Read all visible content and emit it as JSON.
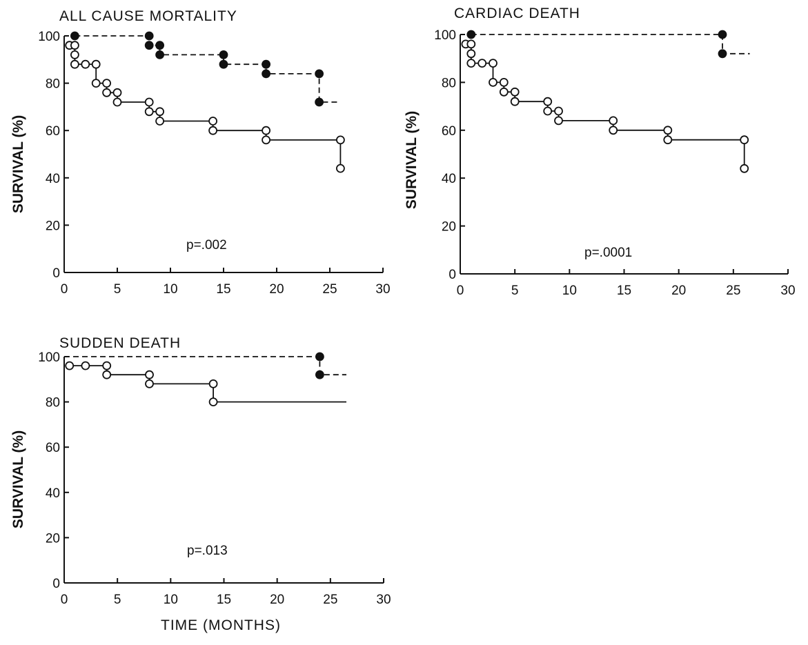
{
  "figure": {
    "xlabel": "TIME (MONTHS)"
  },
  "chart_data": [
    {
      "type": "line",
      "title": "ALL CAUSE MORTALITY",
      "ylabel": "SURVIVAL (%)",
      "xlabel": "",
      "annotation": "p=.002",
      "xlim": [
        0,
        30
      ],
      "ylim": [
        0,
        100
      ],
      "xticks": [
        0,
        5,
        10,
        15,
        20,
        25,
        30
      ],
      "yticks": [
        0,
        20,
        40,
        60,
        80,
        100
      ],
      "series": [
        {
          "style": "filled-dashed",
          "color": "#111111",
          "x": [
            1,
            8,
            8,
            9,
            9,
            15,
            15,
            19,
            19,
            24,
            24,
            26
          ],
          "y": [
            100,
            100,
            96,
            96,
            92,
            92,
            88,
            88,
            84,
            84,
            72,
            72
          ],
          "markers": [
            [
              1,
              100
            ],
            [
              8,
              100
            ],
            [
              8,
              96
            ],
            [
              9,
              96
            ],
            [
              9,
              92
            ],
            [
              15,
              92
            ],
            [
              15,
              88
            ],
            [
              19,
              88
            ],
            [
              19,
              84
            ],
            [
              24,
              84
            ],
            [
              24,
              72
            ]
          ]
        },
        {
          "style": "open-solid",
          "color": "#111111",
          "x": [
            0.5,
            1,
            1,
            2,
            3,
            3,
            4,
            4,
            5,
            5,
            8,
            8,
            9,
            9,
            14,
            14,
            19,
            19,
            26,
            26
          ],
          "y": [
            96,
            96,
            88,
            88,
            88,
            80,
            80,
            76,
            76,
            72,
            72,
            68,
            68,
            64,
            64,
            60,
            60,
            56,
            56,
            44
          ],
          "markers": [
            [
              0.5,
              96
            ],
            [
              1,
              96
            ],
            [
              1,
              92
            ],
            [
              1,
              88
            ],
            [
              2,
              88
            ],
            [
              3,
              88
            ],
            [
              3,
              80
            ],
            [
              4,
              80
            ],
            [
              4,
              76
            ],
            [
              5,
              76
            ],
            [
              5,
              72
            ],
            [
              8,
              72
            ],
            [
              8,
              68
            ],
            [
              9,
              68
            ],
            [
              9,
              64
            ],
            [
              14,
              64
            ],
            [
              14,
              60
            ],
            [
              19,
              60
            ],
            [
              19,
              56
            ],
            [
              26,
              56
            ],
            [
              26,
              44
            ]
          ]
        }
      ]
    },
    {
      "type": "line",
      "title": "CARDIAC DEATH",
      "ylabel": "SURVIVAL (%)",
      "xlabel": "",
      "annotation": "p=.0001",
      "xlim": [
        0,
        30
      ],
      "ylim": [
        0,
        100
      ],
      "xticks": [
        0,
        5,
        10,
        15,
        20,
        25,
        30
      ],
      "yticks": [
        0,
        20,
        40,
        60,
        80,
        100
      ],
      "series": [
        {
          "style": "filled-dashed",
          "color": "#111111",
          "x": [
            1,
            24,
            24,
            26.5
          ],
          "y": [
            100,
            100,
            92,
            92
          ],
          "markers": [
            [
              1,
              100
            ],
            [
              24,
              100
            ],
            [
              24,
              92
            ]
          ]
        },
        {
          "style": "open-solid",
          "color": "#111111",
          "x": [
            0.5,
            1,
            1,
            2,
            3,
            3,
            4,
            4,
            5,
            5,
            8,
            8,
            9,
            9,
            14,
            14,
            19,
            19,
            26,
            26
          ],
          "y": [
            96,
            96,
            88,
            88,
            88,
            80,
            80,
            76,
            76,
            72,
            72,
            68,
            68,
            64,
            64,
            60,
            60,
            56,
            56,
            44
          ],
          "markers": [
            [
              0.5,
              96
            ],
            [
              1,
              96
            ],
            [
              1,
              92
            ],
            [
              1,
              88
            ],
            [
              2,
              88
            ],
            [
              3,
              88
            ],
            [
              3,
              80
            ],
            [
              4,
              80
            ],
            [
              4,
              76
            ],
            [
              5,
              76
            ],
            [
              5,
              72
            ],
            [
              8,
              72
            ],
            [
              8,
              68
            ],
            [
              9,
              68
            ],
            [
              9,
              64
            ],
            [
              14,
              64
            ],
            [
              14,
              60
            ],
            [
              19,
              60
            ],
            [
              19,
              56
            ],
            [
              26,
              56
            ],
            [
              26,
              44
            ]
          ]
        }
      ]
    },
    {
      "type": "line",
      "title": "SUDDEN DEATH",
      "ylabel": "SURVIVAL (%)",
      "xlabel": "TIME (MONTHS)",
      "annotation": "p=.013",
      "xlim": [
        0,
        30
      ],
      "ylim": [
        0,
        100
      ],
      "xticks": [
        0,
        5,
        10,
        15,
        20,
        25,
        30
      ],
      "yticks": [
        0,
        20,
        40,
        60,
        80,
        100
      ],
      "series": [
        {
          "style": "filled-dashed",
          "color": "#111111",
          "x": [
            0,
            24,
            24,
            26.5
          ],
          "y": [
            100,
            100,
            92,
            92
          ],
          "markers": [
            [
              24,
              100
            ],
            [
              24,
              92
            ]
          ]
        },
        {
          "style": "open-solid",
          "color": "#111111",
          "x": [
            0.5,
            4,
            4,
            8,
            8,
            14,
            14,
            26.5
          ],
          "y": [
            96,
            96,
            92,
            92,
            88,
            88,
            80,
            80
          ],
          "markers": [
            [
              0.5,
              96
            ],
            [
              2,
              96
            ],
            [
              4,
              96
            ],
            [
              4,
              92
            ],
            [
              8,
              92
            ],
            [
              8,
              88
            ],
            [
              14,
              88
            ],
            [
              14,
              80
            ]
          ]
        }
      ]
    }
  ]
}
